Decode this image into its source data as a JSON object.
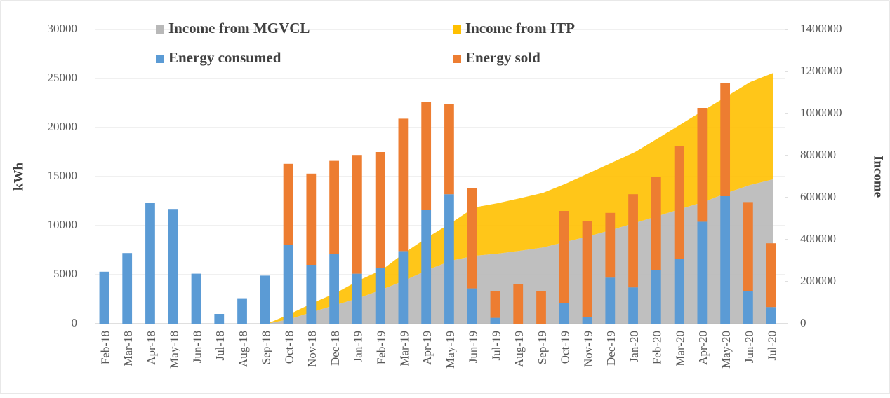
{
  "chart_data": {
    "type": "bar-area-combo",
    "y_label": "kWh",
    "y2_label": "Income",
    "categories": [
      "Feb-18",
      "Mar-18",
      "Apr-18",
      "May-18",
      "Jun-18",
      "Jul-18",
      "Aug-18",
      "Sep-18",
      "Oct-18",
      "Nov-18",
      "Dec-18",
      "Jan-19",
      "Feb-19",
      "Mar-19",
      "Apr-19",
      "May-19",
      "Jun-19",
      "Jul-19",
      "Aug-19",
      "Sep-19",
      "Oct-19",
      "Nov-19",
      "Dec-19",
      "Jan-20",
      "Feb-20",
      "Mar-20",
      "Apr-20",
      "May-20",
      "Jun-20",
      "Jul-20"
    ],
    "ylim": [
      0,
      30000
    ],
    "yticks": [
      0,
      5000,
      10000,
      15000,
      20000,
      25000,
      30000
    ],
    "y2lim": [
      0,
      1400000
    ],
    "y2ticks": [
      0,
      200000,
      400000,
      600000,
      800000,
      1000000,
      1200000,
      1400000
    ],
    "series": [
      {
        "name": "Income from MGVCL",
        "color": "#b8b8b8",
        "kind": "area",
        "axis": "y2",
        "values": [
          null,
          null,
          null,
          null,
          null,
          null,
          null,
          0,
          23000,
          57000,
          90000,
          123000,
          163000,
          207000,
          257000,
          300000,
          323000,
          333000,
          347000,
          363000,
          390000,
          417000,
          447000,
          480000,
          513000,
          547000,
          580000,
          623000,
          660000,
          687000
        ]
      },
      {
        "name": "Income from ITP",
        "color": "#ffc000",
        "kind": "area",
        "axis": "y2",
        "values": [
          null,
          null,
          null,
          null,
          null,
          null,
          null,
          0,
          24000,
          43000,
          57000,
          84000,
          94000,
          133000,
          156000,
          180000,
          230000,
          240000,
          250000,
          260000,
          277000,
          300000,
          320000,
          337000,
          370000,
          403000,
          437000,
          460000,
          490000,
          506000
        ]
      },
      {
        "name": "Energy consumed",
        "color": "#5b9bd5",
        "kind": "bar",
        "values": [
          5300,
          7200,
          12300,
          11700,
          5100,
          1000,
          2600,
          4900,
          8000,
          6000,
          7100,
          5100,
          5700,
          7400,
          11600,
          13200,
          3600,
          600,
          0,
          0,
          2100,
          700,
          4700,
          3700,
          5500,
          6600,
          10400,
          13000,
          3300,
          1700
        ]
      },
      {
        "name": "Energy sold",
        "color": "#ed7d31",
        "kind": "bar",
        "values": [
          0,
          0,
          0,
          0,
          0,
          0,
          0,
          0,
          8300,
          9300,
          9500,
          12100,
          11800,
          13500,
          11000,
          9200,
          10200,
          2700,
          4000,
          3300,
          9400,
          9800,
          6600,
          9500,
          9500,
          11500,
          11600,
          11500,
          9100,
          6500
        ]
      }
    ]
  }
}
